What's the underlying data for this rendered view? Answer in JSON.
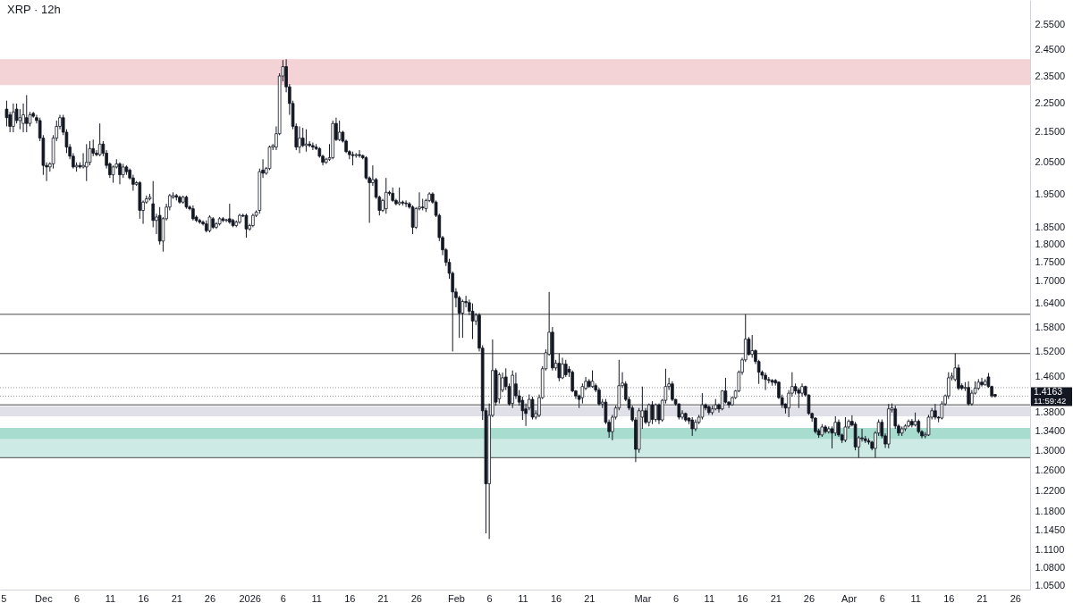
{
  "chart_data": {
    "type": "candlestick",
    "title": "XRP · 12h",
    "x": [
      "2025-11-25T12:00",
      "2025-11-26T00:00",
      "2025-11-26T12:00",
      "2025-11-27T00:00",
      "2025-11-27T12:00",
      "2025-11-28T00:00",
      "2025-11-28T12:00",
      "2025-11-29T00:00",
      "2025-11-29T12:00",
      "2025-11-30T00:00",
      "2025-11-30T12:00",
      "2025-12-01T00:00",
      "2025-12-01T12:00",
      "2025-12-02T00:00",
      "2025-12-02T12:00",
      "2025-12-03T00:00",
      "2025-12-03T12:00",
      "2025-12-04T00:00",
      "2025-12-04T12:00",
      "2025-12-05T00:00",
      "2025-12-05T12:00",
      "2025-12-06T00:00",
      "2025-12-06T12:00",
      "2025-12-07T00:00",
      "2025-12-07T12:00",
      "2025-12-08T00:00",
      "2025-12-08T12:00",
      "2025-12-09T00:00",
      "2025-12-09T12:00",
      "2025-12-10T00:00",
      "2025-12-10T12:00",
      "2025-12-11T00:00",
      "2025-12-11T12:00",
      "2025-12-12T00:00",
      "2025-12-12T12:00",
      "2025-12-13T00:00",
      "2025-12-13T12:00",
      "2025-12-14T00:00",
      "2025-12-14T12:00",
      "2025-12-15T00:00",
      "2025-12-15T12:00",
      "2025-12-16T00:00",
      "2025-12-16T12:00",
      "2025-12-17T00:00",
      "2025-12-17T12:00",
      "2025-12-18T00:00",
      "2025-12-18T12:00",
      "2025-12-19T00:00",
      "2025-12-19T12:00",
      "2025-12-20T00:00",
      "2025-12-20T12:00",
      "2025-12-21T00:00",
      "2025-12-21T12:00",
      "2025-12-22T00:00",
      "2025-12-22T12:00",
      "2025-12-23T00:00",
      "2025-12-23T12:00",
      "2025-12-24T00:00",
      "2025-12-24T12:00",
      "2025-12-25T00:00",
      "2025-12-25T12:00",
      "2025-12-26T00:00",
      "2025-12-26T12:00",
      "2025-12-27T00:00",
      "2025-12-27T12:00",
      "2025-12-28T00:00",
      "2025-12-28T12:00",
      "2025-12-29T00:00",
      "2025-12-29T12:00",
      "2025-12-30T00:00",
      "2025-12-30T12:00",
      "2025-12-31T00:00",
      "2025-12-31T12:00",
      "2026-01-01T00:00",
      "2026-01-01T12:00",
      "2026-01-02T00:00",
      "2026-01-02T12:00",
      "2026-01-03T00:00",
      "2026-01-03T12:00",
      "2026-01-04T00:00",
      "2026-01-04T12:00",
      "2026-01-05T00:00",
      "2026-01-05T12:00",
      "2026-01-06T00:00",
      "2026-01-06T12:00",
      "2026-01-07T00:00",
      "2026-01-07T12:00",
      "2026-01-08T00:00",
      "2026-01-08T12:00",
      "2026-01-09T00:00",
      "2026-01-09T12:00",
      "2026-01-10T00:00",
      "2026-01-10T12:00",
      "2026-01-11T00:00",
      "2026-01-11T12:00",
      "2026-01-12T00:00",
      "2026-01-12T12:00",
      "2026-01-13T00:00",
      "2026-01-13T12:00",
      "2026-01-14T00:00",
      "2026-01-14T12:00",
      "2026-01-15T00:00",
      "2026-01-15T12:00",
      "2026-01-16T00:00",
      "2026-01-16T12:00",
      "2026-01-17T00:00",
      "2026-01-17T12:00",
      "2026-01-18T00:00",
      "2026-01-18T12:00",
      "2026-01-19T00:00",
      "2026-01-19T12:00",
      "2026-01-20T00:00",
      "2026-01-20T12:00",
      "2026-01-21T00:00",
      "2026-01-21T12:00",
      "2026-01-22T00:00",
      "2026-01-22T12:00",
      "2026-01-23T00:00",
      "2026-01-23T12:00",
      "2026-01-24T00:00",
      "2026-01-24T12:00",
      "2026-01-25T00:00",
      "2026-01-25T12:00",
      "2026-01-26T00:00",
      "2026-01-26T12:00",
      "2026-01-27T00:00",
      "2026-01-27T12:00",
      "2026-01-28T00:00",
      "2026-01-28T12:00",
      "2026-01-29T00:00",
      "2026-01-29T12:00",
      "2026-01-30T00:00",
      "2026-01-30T12:00",
      "2026-01-31T00:00",
      "2026-01-31T12:00",
      "2026-02-01T00:00",
      "2026-02-01T12:00",
      "2026-02-02T00:00",
      "2026-02-02T12:00",
      "2026-02-03T00:00",
      "2026-02-03T12:00",
      "2026-02-04T00:00",
      "2026-02-04T12:00",
      "2026-02-05T00:00",
      "2026-02-05T12:00",
      "2026-02-06T00:00",
      "2026-02-06T12:00",
      "2026-02-07T00:00",
      "2026-02-07T12:00",
      "2026-02-08T00:00",
      "2026-02-08T12:00",
      "2026-02-09T00:00",
      "2026-02-09T12:00",
      "2026-02-10T00:00",
      "2026-02-10T12:00",
      "2026-02-11T00:00",
      "2026-02-11T12:00",
      "2026-02-12T00:00",
      "2026-02-12T12:00",
      "2026-02-13T00:00",
      "2026-02-13T12:00",
      "2026-02-14T00:00",
      "2026-02-14T12:00",
      "2026-02-15T00:00",
      "2026-02-15T12:00",
      "2026-02-16T00:00",
      "2026-02-16T12:00",
      "2026-02-17T00:00",
      "2026-02-17T12:00",
      "2026-02-18T00:00",
      "2026-02-18T12:00",
      "2026-02-19T00:00",
      "2026-02-19T12:00",
      "2026-02-20T00:00",
      "2026-02-20T12:00",
      "2026-02-21T00:00",
      "2026-02-21T12:00",
      "2026-02-22T00:00",
      "2026-02-22T12:00",
      "2026-02-23T00:00",
      "2026-02-23T12:00",
      "2026-02-24T00:00",
      "2026-02-24T12:00",
      "2026-02-25T00:00",
      "2026-02-25T12:00",
      "2026-02-26T00:00",
      "2026-02-26T12:00",
      "2026-02-27T00:00",
      "2026-02-27T12:00",
      "2026-02-28T00:00",
      "2026-02-28T12:00",
      "2026-03-01T00:00",
      "2026-03-01T12:00",
      "2026-03-02T00:00",
      "2026-03-02T12:00",
      "2026-03-03T00:00",
      "2026-03-03T12:00",
      "2026-03-04T00:00",
      "2026-03-04T12:00",
      "2026-03-05T00:00",
      "2026-03-05T12:00",
      "2026-03-06T00:00",
      "2026-03-06T12:00",
      "2026-03-07T00:00",
      "2026-03-07T12:00",
      "2026-03-08T00:00",
      "2026-03-08T12:00",
      "2026-03-09T00:00",
      "2026-03-09T12:00",
      "2026-03-10T00:00",
      "2026-03-10T12:00",
      "2026-03-11T00:00",
      "2026-03-11T12:00",
      "2026-03-12T00:00",
      "2026-03-12T12:00",
      "2026-03-13T00:00",
      "2026-03-13T12:00",
      "2026-03-14T00:00",
      "2026-03-14T12:00",
      "2026-03-15T00:00",
      "2026-03-15T12:00",
      "2026-03-16T00:00",
      "2026-03-16T12:00",
      "2026-03-17T00:00",
      "2026-03-17T12:00",
      "2026-03-18T00:00",
      "2026-03-18T12:00",
      "2026-03-19T00:00",
      "2026-03-19T12:00",
      "2026-03-20T00:00",
      "2026-03-20T12:00",
      "2026-03-21T00:00",
      "2026-03-21T12:00",
      "2026-03-22T00:00",
      "2026-03-22T12:00",
      "2026-03-23T00:00",
      "2026-03-23T12:00",
      "2026-03-24T00:00",
      "2026-03-24T12:00",
      "2026-03-25T00:00",
      "2026-03-25T12:00",
      "2026-03-26T00:00",
      "2026-03-26T12:00",
      "2026-03-27T00:00",
      "2026-03-27T12:00",
      "2026-03-28T00:00",
      "2026-03-28T12:00",
      "2026-03-29T00:00",
      "2026-03-29T12:00",
      "2026-03-30T00:00",
      "2026-03-30T12:00",
      "2026-03-31T00:00",
      "2026-03-31T12:00",
      "2026-04-01T00:00",
      "2026-04-01T12:00",
      "2026-04-02T00:00",
      "2026-04-02T12:00",
      "2026-04-03T00:00",
      "2026-04-03T12:00",
      "2026-04-04T00:00",
      "2026-04-04T12:00",
      "2026-04-05T00:00",
      "2026-04-05T12:00",
      "2026-04-06T00:00",
      "2026-04-06T12:00",
      "2026-04-07T00:00",
      "2026-04-07T12:00",
      "2026-04-08T00:00",
      "2026-04-08T12:00",
      "2026-04-09T00:00",
      "2026-04-09T12:00",
      "2026-04-10T00:00",
      "2026-04-10T12:00",
      "2026-04-11T00:00",
      "2026-04-11T12:00",
      "2026-04-12T00:00",
      "2026-04-12T12:00",
      "2026-04-13T00:00",
      "2026-04-13T12:00",
      "2026-04-14T00:00",
      "2026-04-14T12:00",
      "2026-04-15T00:00",
      "2026-04-15T12:00",
      "2026-04-16T00:00",
      "2026-04-16T12:00",
      "2026-04-17T00:00",
      "2026-04-17T12:00",
      "2026-04-18T00:00",
      "2026-04-18T12:00",
      "2026-04-19T00:00",
      "2026-04-19T12:00",
      "2026-04-20T00:00",
      "2026-04-20T12:00",
      "2026-04-21T00:00",
      "2026-04-21T12:00",
      "2026-04-22T00:00",
      "2026-04-22T12:00",
      "2026-04-23T00:00"
    ],
    "ohlc": [
      [
        2.23,
        2.26,
        2.17,
        2.2
      ],
      [
        2.21,
        2.22,
        2.15,
        2.17
      ],
      [
        2.17,
        2.25,
        2.15,
        2.22
      ],
      [
        2.23,
        2.25,
        2.18,
        2.19
      ],
      [
        2.19,
        2.23,
        2.16,
        2.2
      ],
      [
        2.18,
        2.25,
        2.15,
        2.21
      ],
      [
        2.2,
        2.28,
        2.15,
        2.18
      ],
      [
        2.18,
        2.22,
        2.17,
        2.21
      ],
      [
        2.215,
        2.22,
        2.2,
        2.205
      ],
      [
        2.2,
        2.21,
        2.18,
        2.19
      ],
      [
        2.19,
        2.2,
        2.12,
        2.13
      ],
      [
        2.13,
        2.14,
        2.01,
        2.04
      ],
      [
        2.04,
        2.05,
        1.99,
        2.035
      ],
      [
        2.035,
        2.05,
        2.02,
        2.045
      ],
      [
        2.045,
        2.14,
        2.03,
        2.13
      ],
      [
        2.13,
        2.19,
        2.12,
        2.17
      ],
      [
        2.17,
        2.21,
        2.16,
        2.2
      ],
      [
        2.2,
        2.21,
        2.14,
        2.15
      ],
      [
        2.15,
        2.16,
        2.08,
        2.1
      ],
      [
        2.1,
        2.11,
        2.06,
        2.07
      ],
      [
        2.07,
        2.08,
        2.03,
        2.035
      ],
      [
        2.035,
        2.05,
        2.02,
        2.04
      ],
      [
        2.04,
        2.05,
        2.03,
        2.035
      ],
      [
        2.035,
        2.08,
        2.03,
        2.04
      ],
      [
        2.035,
        2.11,
        1.99,
        2.05
      ],
      [
        2.05,
        2.12,
        2.04,
        2.095
      ],
      [
        2.095,
        2.125,
        2.07,
        2.08
      ],
      [
        2.08,
        2.09,
        2.07,
        2.075
      ],
      [
        2.075,
        2.18,
        2.07,
        2.11
      ],
      [
        2.11,
        2.12,
        2.07,
        2.08
      ],
      [
        2.08,
        2.09,
        2.03,
        2.04
      ],
      [
        2.045,
        2.05,
        2.0,
        2.01
      ],
      [
        2.01,
        2.04,
        1.985,
        2.035
      ],
      [
        2.035,
        2.06,
        2.03,
        2.045
      ],
      [
        2.045,
        2.05,
        1.98,
        2.01
      ],
      [
        2.01,
        2.045,
        2.0,
        2.035
      ],
      [
        2.035,
        2.04,
        2.01,
        2.02
      ],
      [
        2.025,
        2.03,
        1.995,
        2.0
      ],
      [
        2.0,
        2.01,
        1.96,
        1.98
      ],
      [
        1.98,
        1.99,
        1.975,
        1.985
      ],
      [
        1.985,
        1.99,
        1.875,
        1.9
      ],
      [
        1.9,
        1.93,
        1.86,
        1.925
      ],
      [
        1.925,
        1.945,
        1.92,
        1.935
      ],
      [
        1.935,
        1.95,
        1.93,
        1.94
      ],
      [
        1.92,
        1.99,
        1.85,
        1.87
      ],
      [
        1.87,
        1.89,
        1.83,
        1.88
      ],
      [
        1.885,
        1.91,
        1.8,
        1.81
      ],
      [
        1.81,
        1.88,
        1.78,
        1.875
      ],
      [
        1.875,
        1.92,
        1.87,
        1.91
      ],
      [
        1.91,
        1.95,
        1.9,
        1.945
      ],
      [
        1.94,
        1.955,
        1.935,
        1.945
      ],
      [
        1.945,
        1.95,
        1.93,
        1.94
      ],
      [
        1.94,
        1.945,
        1.92,
        1.925
      ],
      [
        1.925,
        1.945,
        1.92,
        1.94
      ],
      [
        1.94,
        1.945,
        1.905,
        1.91
      ],
      [
        1.91,
        1.915,
        1.9,
        1.905
      ],
      [
        1.905,
        1.915,
        1.87,
        1.875
      ],
      [
        1.88,
        1.885,
        1.865,
        1.87
      ],
      [
        1.87,
        1.875,
        1.86,
        1.865
      ],
      [
        1.865,
        1.87,
        1.855,
        1.86
      ],
      [
        1.86,
        1.87,
        1.835,
        1.84
      ],
      [
        1.84,
        1.885,
        1.835,
        1.88
      ],
      [
        1.875,
        1.88,
        1.845,
        1.85
      ],
      [
        1.85,
        1.865,
        1.845,
        1.86
      ],
      [
        1.86,
        1.88,
        1.855,
        1.875
      ],
      [
        1.875,
        1.88,
        1.865,
        1.87
      ],
      [
        1.87,
        1.875,
        1.865,
        1.872
      ],
      [
        1.875,
        1.92,
        1.86,
        1.865
      ],
      [
        1.87,
        1.875,
        1.85,
        1.855
      ],
      [
        1.855,
        1.87,
        1.85,
        1.865
      ],
      [
        1.865,
        1.89,
        1.86,
        1.885
      ],
      [
        1.885,
        1.89,
        1.88,
        1.883
      ],
      [
        1.885,
        1.89,
        1.82,
        1.845
      ],
      [
        1.845,
        1.86,
        1.84,
        1.855
      ],
      [
        1.855,
        1.89,
        1.85,
        1.885
      ],
      [
        1.885,
        1.9,
        1.88,
        1.895
      ],
      [
        1.9,
        2.03,
        1.89,
        2.02
      ],
      [
        2.025,
        2.06,
        2.0,
        2.015
      ],
      [
        2.015,
        2.035,
        2.01,
        2.03
      ],
      [
        2.03,
        2.105,
        2.025,
        2.1
      ],
      [
        2.1,
        2.11,
        2.09,
        2.105
      ],
      [
        2.1,
        2.17,
        2.09,
        2.145
      ],
      [
        2.145,
        2.36,
        2.14,
        2.35
      ],
      [
        2.35,
        2.41,
        2.33,
        2.385
      ],
      [
        2.385,
        2.413,
        2.29,
        2.31
      ],
      [
        2.31,
        2.32,
        2.21,
        2.25
      ],
      [
        2.25,
        2.26,
        2.16,
        2.17
      ],
      [
        2.17,
        2.18,
        2.09,
        2.1
      ],
      [
        2.1,
        2.17,
        2.08,
        2.13
      ],
      [
        2.13,
        2.165,
        2.1,
        2.105
      ],
      [
        2.105,
        2.16,
        2.085,
        2.11
      ],
      [
        2.11,
        2.12,
        2.1,
        2.105
      ],
      [
        2.105,
        2.115,
        2.09,
        2.1
      ],
      [
        2.1,
        2.11,
        2.09,
        2.095
      ],
      [
        2.095,
        2.1,
        2.065,
        2.07
      ],
      [
        2.07,
        2.075,
        2.04,
        2.05
      ],
      [
        2.05,
        2.065,
        2.045,
        2.06
      ],
      [
        2.06,
        2.11,
        2.055,
        2.065
      ],
      [
        2.065,
        2.19,
        2.06,
        2.18
      ],
      [
        2.18,
        2.2,
        2.12,
        2.125
      ],
      [
        2.125,
        2.19,
        2.12,
        2.15
      ],
      [
        2.15,
        2.155,
        2.115,
        2.12
      ],
      [
        2.12,
        2.125,
        2.08,
        2.085
      ],
      [
        2.085,
        2.09,
        2.06,
        2.075
      ],
      [
        2.075,
        2.085,
        2.04,
        2.072
      ],
      [
        2.072,
        2.08,
        2.065,
        2.075
      ],
      [
        2.075,
        2.09,
        2.065,
        2.072
      ],
      [
        2.072,
        2.075,
        2.06,
        2.065
      ],
      [
        2.065,
        2.07,
        1.995,
        2.0
      ],
      [
        2.0,
        2.005,
        1.863,
        1.985
      ],
      [
        1.985,
        2.04,
        1.975,
        1.995
      ],
      [
        1.995,
        2.0,
        1.935,
        1.94
      ],
      [
        1.94,
        1.945,
        1.885,
        1.9
      ],
      [
        1.9,
        1.935,
        1.895,
        1.93
      ],
      [
        1.905,
        2.0,
        1.89,
        1.955
      ],
      [
        1.955,
        1.96,
        1.945,
        1.952
      ],
      [
        1.952,
        1.97,
        1.925,
        1.93
      ],
      [
        1.93,
        1.935,
        1.915,
        1.92
      ],
      [
        1.92,
        1.97,
        1.915,
        1.925
      ],
      [
        1.925,
        1.93,
        1.915,
        1.922
      ],
      [
        1.922,
        1.93,
        1.91,
        1.92
      ],
      [
        1.92,
        1.925,
        1.905,
        1.91
      ],
      [
        1.91,
        1.915,
        1.83,
        1.85
      ],
      [
        1.85,
        1.91,
        1.845,
        1.905
      ],
      [
        1.905,
        1.955,
        1.9,
        1.91
      ],
      [
        1.91,
        1.935,
        1.9,
        1.908
      ],
      [
        1.905,
        1.935,
        1.895,
        1.93
      ],
      [
        1.93,
        1.955,
        1.925,
        1.95
      ],
      [
        1.95,
        1.955,
        1.92,
        1.925
      ],
      [
        1.925,
        1.93,
        1.88,
        1.885
      ],
      [
        1.885,
        1.89,
        1.81,
        1.82
      ],
      [
        1.82,
        1.825,
        1.77,
        1.785
      ],
      [
        1.785,
        1.79,
        1.74,
        1.75
      ],
      [
        1.75,
        1.76,
        1.705,
        1.72
      ],
      [
        1.72,
        1.725,
        1.52,
        1.67
      ],
      [
        1.67,
        1.68,
        1.63,
        1.655
      ],
      [
        1.655,
        1.66,
        1.553,
        1.615
      ],
      [
        1.615,
        1.65,
        1.553,
        1.645
      ],
      [
        1.645,
        1.66,
        1.63,
        1.642
      ],
      [
        1.642,
        1.65,
        1.61,
        1.62
      ],
      [
        1.62,
        1.64,
        1.55,
        1.595
      ],
      [
        1.595,
        1.615,
        1.585,
        1.61
      ],
      [
        1.61,
        1.615,
        1.52,
        1.528
      ],
      [
        1.528,
        1.535,
        1.364,
        1.384
      ],
      [
        1.384,
        1.39,
        1.14,
        1.233
      ],
      [
        1.233,
        1.4,
        1.13,
        1.374
      ],
      [
        1.374,
        1.549,
        1.37,
        1.475
      ],
      [
        1.475,
        1.48,
        1.395,
        1.403
      ],
      [
        1.41,
        1.47,
        1.4,
        1.465
      ],
      [
        1.43,
        1.47,
        1.425,
        1.458
      ],
      [
        1.46,
        1.48,
        1.43,
        1.438
      ],
      [
        1.438,
        1.445,
        1.395,
        1.399
      ],
      [
        1.4,
        1.475,
        1.39,
        1.464
      ],
      [
        1.444,
        1.47,
        1.41,
        1.417
      ],
      [
        1.417,
        1.43,
        1.395,
        1.403
      ],
      [
        1.407,
        1.415,
        1.364,
        1.384
      ],
      [
        1.388,
        1.4,
        1.351,
        1.378
      ],
      [
        1.39,
        1.42,
        1.385,
        1.409
      ],
      [
        1.409,
        1.415,
        1.365,
        1.37
      ],
      [
        1.37,
        1.385,
        1.365,
        1.378
      ],
      [
        1.374,
        1.42,
        1.37,
        1.413
      ],
      [
        1.413,
        1.485,
        1.41,
        1.479
      ],
      [
        1.479,
        1.525,
        1.475,
        1.517
      ],
      [
        1.513,
        1.67,
        1.51,
        1.567
      ],
      [
        1.567,
        1.58,
        1.475,
        1.481
      ],
      [
        1.481,
        1.5,
        1.475,
        1.492
      ],
      [
        1.492,
        1.515,
        1.45,
        1.458
      ],
      [
        1.458,
        1.505,
        1.455,
        1.49
      ],
      [
        1.49,
        1.5,
        1.46,
        1.465
      ],
      [
        1.478,
        1.485,
        1.46,
        1.471
      ],
      [
        1.471,
        1.475,
        1.425,
        1.428
      ],
      [
        1.428,
        1.43,
        1.41,
        1.417
      ],
      [
        1.417,
        1.42,
        1.39,
        1.409
      ],
      [
        1.413,
        1.445,
        1.4,
        1.438
      ],
      [
        1.434,
        1.46,
        1.43,
        1.45
      ],
      [
        1.45,
        1.455,
        1.435,
        1.438
      ],
      [
        1.438,
        1.475,
        1.435,
        1.45
      ],
      [
        1.44,
        1.445,
        1.425,
        1.43
      ],
      [
        1.43,
        1.435,
        1.395,
        1.399
      ],
      [
        1.399,
        1.41,
        1.39,
        1.403
      ],
      [
        1.403,
        1.41,
        1.355,
        1.359
      ],
      [
        1.359,
        1.365,
        1.326,
        1.339
      ],
      [
        1.339,
        1.375,
        1.321,
        1.37
      ],
      [
        1.37,
        1.395,
        1.365,
        1.39
      ],
      [
        1.39,
        1.5,
        1.385,
        1.44
      ],
      [
        1.44,
        1.471,
        1.435,
        1.446
      ],
      [
        1.444,
        1.45,
        1.405,
        1.409
      ],
      [
        1.409,
        1.415,
        1.385,
        1.39
      ],
      [
        1.39,
        1.395,
        1.36,
        1.364
      ],
      [
        1.364,
        1.37,
        1.276,
        1.302
      ],
      [
        1.302,
        1.39,
        1.295,
        1.384
      ],
      [
        1.37,
        1.438,
        1.345,
        1.384
      ],
      [
        1.384,
        1.39,
        1.355,
        1.359
      ],
      [
        1.359,
        1.4,
        1.35,
        1.397
      ],
      [
        1.397,
        1.405,
        1.355,
        1.365
      ],
      [
        1.365,
        1.4,
        1.36,
        1.397
      ],
      [
        1.397,
        1.4,
        1.355,
        1.364
      ],
      [
        1.364,
        1.41,
        1.36,
        1.407
      ],
      [
        1.407,
        1.479,
        1.4,
        1.438
      ],
      [
        1.438,
        1.458,
        1.43,
        1.444
      ],
      [
        1.444,
        1.45,
        1.405,
        1.409
      ],
      [
        1.409,
        1.41,
        1.395,
        1.399
      ],
      [
        1.399,
        1.4,
        1.365,
        1.37
      ],
      [
        1.37,
        1.385,
        1.365,
        1.378
      ],
      [
        1.378,
        1.38,
        1.36,
        1.364
      ],
      [
        1.368,
        1.37,
        1.355,
        1.362
      ],
      [
        1.364,
        1.37,
        1.33,
        1.345
      ],
      [
        1.345,
        1.365,
        1.34,
        1.359
      ],
      [
        1.359,
        1.375,
        1.355,
        1.37
      ],
      [
        1.37,
        1.423,
        1.365,
        1.397
      ],
      [
        1.397,
        1.4,
        1.385,
        1.39
      ],
      [
        1.393,
        1.395,
        1.375,
        1.38
      ],
      [
        1.38,
        1.395,
        1.375,
        1.388
      ],
      [
        1.388,
        1.41,
        1.385,
        1.397
      ],
      [
        1.397,
        1.4,
        1.38,
        1.388
      ],
      [
        1.388,
        1.43,
        1.385,
        1.428
      ],
      [
        1.428,
        1.458,
        1.4,
        1.403
      ],
      [
        1.403,
        1.405,
        1.39,
        1.397
      ],
      [
        1.397,
        1.415,
        1.395,
        1.413
      ],
      [
        1.413,
        1.43,
        1.41,
        1.428
      ],
      [
        1.428,
        1.475,
        1.425,
        1.471
      ],
      [
        1.471,
        1.505,
        1.465,
        1.5
      ],
      [
        1.5,
        1.612,
        1.495,
        1.55
      ],
      [
        1.55,
        1.555,
        1.51,
        1.513
      ],
      [
        1.513,
        1.56,
        1.505,
        1.522
      ],
      [
        1.522,
        1.525,
        1.49,
        1.496
      ],
      [
        1.496,
        1.5,
        1.444,
        1.471
      ],
      [
        1.471,
        1.475,
        1.455,
        1.464
      ],
      [
        1.464,
        1.47,
        1.43,
        1.454
      ],
      [
        1.454,
        1.46,
        1.445,
        1.452
      ],
      [
        1.452,
        1.455,
        1.44,
        1.448
      ],
      [
        1.452,
        1.455,
        1.44,
        1.446
      ],
      [
        1.448,
        1.45,
        1.41,
        1.413
      ],
      [
        1.413,
        1.42,
        1.39,
        1.397
      ],
      [
        1.399,
        1.4,
        1.378,
        1.39
      ],
      [
        1.39,
        1.43,
        1.37,
        1.423
      ],
      [
        1.423,
        1.471,
        1.415,
        1.438
      ],
      [
        1.438,
        1.445,
        1.42,
        1.428
      ],
      [
        1.43,
        1.435,
        1.39,
        1.423
      ],
      [
        1.423,
        1.445,
        1.415,
        1.438
      ],
      [
        1.438,
        1.44,
        1.415,
        1.419
      ],
      [
        1.419,
        1.42,
        1.375,
        1.378
      ],
      [
        1.378,
        1.38,
        1.36,
        1.368
      ],
      [
        1.368,
        1.37,
        1.335,
        1.339
      ],
      [
        1.341,
        1.345,
        1.326,
        1.332
      ],
      [
        1.332,
        1.355,
        1.328,
        1.349
      ],
      [
        1.349,
        1.353,
        1.335,
        1.339
      ],
      [
        1.339,
        1.35,
        1.335,
        1.345
      ],
      [
        1.345,
        1.35,
        1.304,
        1.336
      ],
      [
        1.336,
        1.372,
        1.33,
        1.359
      ],
      [
        1.359,
        1.365,
        1.328,
        1.332
      ],
      [
        1.332,
        1.335,
        1.315,
        1.321
      ],
      [
        1.321,
        1.37,
        1.317,
        1.349
      ],
      [
        1.349,
        1.365,
        1.345,
        1.361
      ],
      [
        1.361,
        1.374,
        1.35,
        1.353
      ],
      [
        1.355,
        1.36,
        1.3,
        1.307
      ],
      [
        1.307,
        1.33,
        1.285,
        1.326
      ],
      [
        1.326,
        1.345,
        1.318,
        1.324
      ],
      [
        1.324,
        1.33,
        1.315,
        1.32
      ],
      [
        1.32,
        1.325,
        1.312,
        1.317
      ],
      [
        1.317,
        1.32,
        1.3,
        1.304
      ],
      [
        1.304,
        1.34,
        1.285,
        1.336
      ],
      [
        1.336,
        1.365,
        1.33,
        1.359
      ],
      [
        1.359,
        1.365,
        1.325,
        1.33
      ],
      [
        1.33,
        1.335,
        1.305,
        1.313
      ],
      [
        1.313,
        1.399,
        1.304,
        1.388
      ],
      [
        1.386,
        1.4,
        1.38,
        1.39
      ],
      [
        1.388,
        1.395,
        1.345,
        1.351
      ],
      [
        1.351,
        1.355,
        1.33,
        1.336
      ],
      [
        1.336,
        1.35,
        1.33,
        1.345
      ],
      [
        1.345,
        1.355,
        1.34,
        1.351
      ],
      [
        1.351,
        1.365,
        1.348,
        1.361
      ],
      [
        1.361,
        1.366,
        1.348,
        1.353
      ],
      [
        1.353,
        1.38,
        1.35,
        1.361
      ],
      [
        1.361,
        1.365,
        1.335,
        1.339
      ],
      [
        1.339,
        1.342,
        1.325,
        1.33
      ],
      [
        1.33,
        1.338,
        1.325,
        1.333
      ],
      [
        1.332,
        1.375,
        1.33,
        1.37
      ],
      [
        1.37,
        1.39,
        1.365,
        1.384
      ],
      [
        1.384,
        1.399,
        1.365,
        1.37
      ],
      [
        1.37,
        1.372,
        1.359,
        1.368
      ],
      [
        1.368,
        1.405,
        1.365,
        1.399
      ],
      [
        1.399,
        1.42,
        1.395,
        1.417
      ],
      [
        1.417,
        1.471,
        1.41,
        1.458
      ],
      [
        1.458,
        1.47,
        1.452,
        1.462
      ],
      [
        1.454,
        1.515,
        1.45,
        1.481
      ],
      [
        1.481,
        1.489,
        1.43,
        1.434
      ],
      [
        1.44,
        1.445,
        1.43,
        1.434
      ],
      [
        1.434,
        1.448,
        1.428,
        1.436
      ],
      [
        1.436,
        1.45,
        1.395,
        1.399
      ],
      [
        1.399,
        1.43,
        1.395,
        1.423
      ],
      [
        1.423,
        1.45,
        1.42,
        1.434
      ],
      [
        1.434,
        1.455,
        1.43,
        1.448
      ],
      [
        1.448,
        1.458,
        1.438,
        1.442
      ],
      [
        1.442,
        1.455,
        1.44,
        1.45
      ],
      [
        1.46,
        1.469,
        1.435,
        1.438
      ],
      [
        1.438,
        1.44,
        1.413,
        1.417
      ],
      [
        1.42,
        1.421,
        1.413,
        1.4163
      ]
    ],
    "xlim": [
      "2025-11-24T12:00",
      "2026-04-28T06:00"
    ],
    "xticks": [
      {
        "value": "2025-11-25",
        "label": "5"
      },
      {
        "value": "2025-12-01",
        "label": "Dec"
      },
      {
        "value": "2025-12-06",
        "label": "6"
      },
      {
        "value": "2025-12-11",
        "label": "11"
      },
      {
        "value": "2025-12-16",
        "label": "16"
      },
      {
        "value": "2025-12-21",
        "label": "21"
      },
      {
        "value": "2025-12-26",
        "label": "26"
      },
      {
        "value": "2026-01-01",
        "label": "2026"
      },
      {
        "value": "2026-01-06",
        "label": "6"
      },
      {
        "value": "2026-01-11",
        "label": "11"
      },
      {
        "value": "2026-01-16",
        "label": "16"
      },
      {
        "value": "2026-01-21",
        "label": "21"
      },
      {
        "value": "2026-01-26",
        "label": "26"
      },
      {
        "value": "2026-02-01",
        "label": "Feb"
      },
      {
        "value": "2026-02-06",
        "label": "6"
      },
      {
        "value": "2026-02-11",
        "label": "11"
      },
      {
        "value": "2026-02-16",
        "label": "16"
      },
      {
        "value": "2026-02-21",
        "label": "21"
      },
      {
        "value": "2026-03-01",
        "label": "Mar"
      },
      {
        "value": "2026-03-06",
        "label": "6"
      },
      {
        "value": "2026-03-11",
        "label": "11"
      },
      {
        "value": "2026-03-16",
        "label": "16"
      },
      {
        "value": "2026-03-21",
        "label": "21"
      },
      {
        "value": "2026-03-26",
        "label": "26"
      },
      {
        "value": "2026-04-01",
        "label": "Apr"
      },
      {
        "value": "2026-04-06",
        "label": "6"
      },
      {
        "value": "2026-04-11",
        "label": "11"
      },
      {
        "value": "2026-04-16",
        "label": "16"
      },
      {
        "value": "2026-04-21",
        "label": "21"
      },
      {
        "value": "2026-04-26",
        "label": "26"
      }
    ],
    "ylim": [
      1.043,
      2.65
    ],
    "yticks": [
      {
        "value": 2.55,
        "label": "2.5500"
      },
      {
        "value": 2.45,
        "label": "2.4500"
      },
      {
        "value": 2.35,
        "label": "2.3500"
      },
      {
        "value": 2.25,
        "label": "2.2500"
      },
      {
        "value": 2.15,
        "label": "2.1500"
      },
      {
        "value": 2.05,
        "label": "2.0500"
      },
      {
        "value": 1.95,
        "label": "1.9500"
      },
      {
        "value": 1.85,
        "label": "1.8500"
      },
      {
        "value": 1.8,
        "label": "1.8000"
      },
      {
        "value": 1.75,
        "label": "1.7500"
      },
      {
        "value": 1.7,
        "label": "1.7000"
      },
      {
        "value": 1.64,
        "label": "1.6400"
      },
      {
        "value": 1.58,
        "label": "1.5800"
      },
      {
        "value": 1.52,
        "label": "1.5200"
      },
      {
        "value": 1.46,
        "label": "1.4600"
      },
      {
        "value": 1.38,
        "label": "1.3800"
      },
      {
        "value": 1.34,
        "label": "1.3400"
      },
      {
        "value": 1.3,
        "label": "1.3000"
      },
      {
        "value": 1.26,
        "label": "1.2600"
      },
      {
        "value": 1.22,
        "label": "1.2200"
      },
      {
        "value": 1.18,
        "label": "1.1800"
      },
      {
        "value": 1.145,
        "label": "1.1450"
      },
      {
        "value": 1.11,
        "label": "1.1100"
      },
      {
        "value": 1.08,
        "label": "1.0800"
      },
      {
        "value": 1.05,
        "label": "1.0500"
      }
    ],
    "log": true,
    "grid": false,
    "bands": [
      {
        "axis": "y",
        "from": 2.316,
        "to": 2.413,
        "color": "#f3d3d6"
      },
      {
        "axis": "y",
        "from": 1.285,
        "to": 1.339,
        "color": "#cdebe4"
      },
      {
        "axis": "y",
        "from": 1.324,
        "to": 1.347,
        "color": "#a8dccf"
      },
      {
        "axis": "y",
        "from": 1.372,
        "to": 1.394,
        "color": "#e0e0e8"
      }
    ],
    "ref_lines": [
      {
        "axis": "y",
        "value": 1.612,
        "color": "#4a4a4a",
        "line_style": "solid"
      },
      {
        "axis": "y",
        "value": 1.515,
        "color": "#4a4a4a",
        "line_style": "solid"
      },
      {
        "axis": "y",
        "value": 1.397,
        "color": "#4a4a4a",
        "line_style": "solid"
      },
      {
        "axis": "y",
        "value": 1.285,
        "color": "#4a4a4a",
        "line_style": "solid"
      },
      {
        "axis": "y",
        "value": 1.4355,
        "color": "#9598a1",
        "line_style": "dotted"
      },
      {
        "axis": "y",
        "value": 1.4163,
        "label": "1.4163",
        "color": "#9598a1",
        "line_style": "dotted"
      }
    ],
    "annotations": [
      "11:59:42"
    ]
  }
}
